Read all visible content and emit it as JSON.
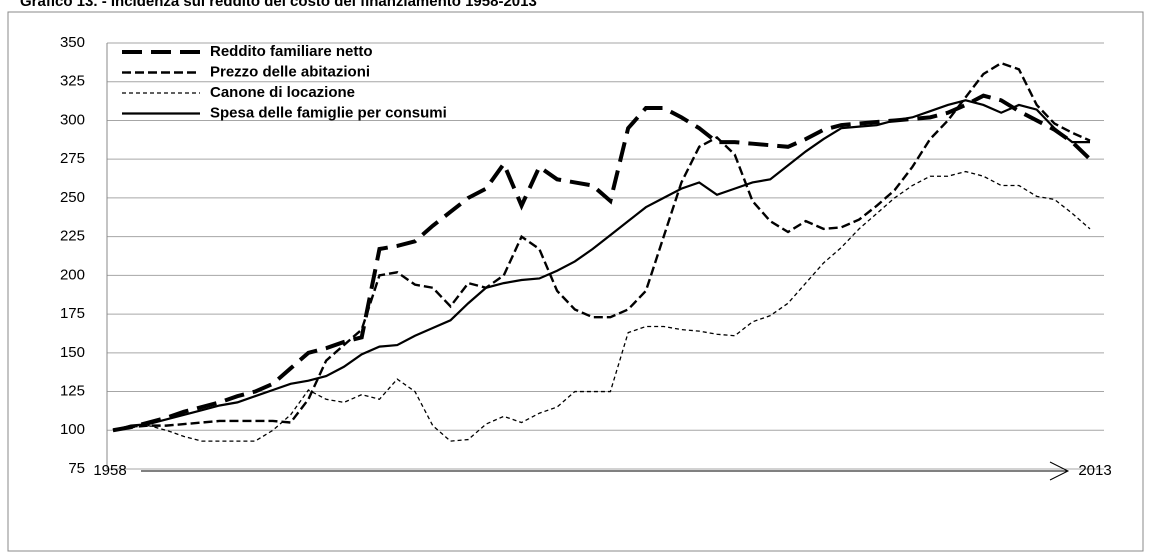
{
  "chart_data": {
    "type": "line",
    "title": "Grafico 13. - Incidenza sul reddito del costo del finanziamento 1958-2013",
    "x": [
      1958,
      1959,
      1960,
      1961,
      1962,
      1963,
      1964,
      1965,
      1966,
      1967,
      1968,
      1969,
      1970,
      1971,
      1972,
      1973,
      1974,
      1975,
      1976,
      1977,
      1978,
      1979,
      1980,
      1981,
      1982,
      1983,
      1984,
      1985,
      1986,
      1987,
      1988,
      1989,
      1990,
      1991,
      1992,
      1993,
      1994,
      1995,
      1996,
      1997,
      1998,
      1999,
      2000,
      2001,
      2002,
      2003,
      2004,
      2005,
      2006,
      2007,
      2008,
      2009,
      2010,
      2011,
      2012,
      2013
    ],
    "xlim": [
      1958,
      2013
    ],
    "xticks": [
      1958,
      2013
    ],
    "ylim": [
      75,
      350
    ],
    "yticks": [
      75,
      100,
      125,
      150,
      175,
      200,
      225,
      250,
      275,
      300,
      325,
      350
    ],
    "grid": true,
    "legend": "upper left",
    "series": [
      {
        "name": "Reddito familiare netto",
        "color": "#000000",
        "style": "long-dash",
        "values": [
          100,
          102,
          105,
          108,
          112,
          115,
          118,
          122,
          125,
          130,
          140,
          150,
          153,
          157,
          160,
          217,
          219,
          222,
          232,
          241,
          250,
          256,
          272,
          245,
          270,
          262,
          260,
          258,
          248,
          295,
          308,
          308,
          302,
          295,
          286,
          286,
          285,
          284,
          283,
          288,
          294,
          297,
          298,
          299,
          300,
          301,
          302,
          305,
          310,
          316,
          313,
          306,
          300,
          294,
          286,
          275
        ]
      },
      {
        "name": "Prezzo delle abitazioni",
        "color": "#000000",
        "style": "dash",
        "values": [
          100,
          102,
          103,
          103,
          104,
          105,
          106,
          106,
          106,
          106,
          105,
          120,
          145,
          155,
          165,
          200,
          202,
          194,
          192,
          180,
          195,
          192,
          200,
          225,
          217,
          190,
          178,
          173,
          173,
          178,
          190,
          225,
          260,
          283,
          289,
          278,
          248,
          235,
          228,
          235,
          230,
          231,
          236,
          245,
          255,
          270,
          288,
          300,
          315,
          330,
          337,
          333,
          310,
          298,
          292,
          287
        ]
      },
      {
        "name": "Canone di locazione",
        "color": "#000000",
        "style": "short-dash",
        "values": [
          100,
          102,
          103,
          100,
          96,
          93,
          93,
          93,
          93,
          100,
          110,
          126,
          120,
          118,
          123,
          120,
          133,
          125,
          103,
          93,
          94,
          104,
          109,
          105,
          111,
          115,
          125,
          125,
          125,
          163,
          167,
          167,
          165,
          164,
          162,
          161,
          170,
          174,
          182,
          195,
          208,
          218,
          230,
          240,
          250,
          258,
          264,
          264,
          267,
          264,
          258,
          258,
          251,
          249,
          240,
          230
        ]
      },
      {
        "name": "Spesa delle famiglie per consumi",
        "color": "#000000",
        "style": "solid",
        "values": [
          100,
          103,
          104,
          107,
          110,
          113,
          116,
          118,
          122,
          126,
          130,
          132,
          135,
          141,
          149,
          154,
          155,
          161,
          166,
          171,
          182,
          192,
          195,
          197,
          198,
          203,
          209,
          217,
          226,
          235,
          244,
          250,
          256,
          260,
          252,
          256,
          260,
          262,
          271,
          280,
          288,
          295,
          296,
          297,
          300,
          302,
          306,
          310,
          313,
          310,
          305,
          310,
          307,
          295,
          286,
          286
        ]
      }
    ]
  }
}
